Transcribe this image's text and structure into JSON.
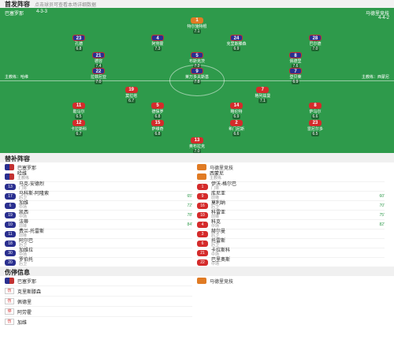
{
  "header": {
    "title": "首发阵容",
    "note": "点击球员可查看本场详细数据"
  },
  "pitch": {
    "home_team": "巴塞罗那",
    "away_team": "马德里竞技",
    "home_formation": "4-3-3",
    "away_formation": "4-4-2",
    "home_coach": "主教练：哈维",
    "away_coach": "主教练：西蒙尼",
    "home_gk": {
      "num": "1",
      "name": "特尔施特根",
      "rating": "7.1"
    },
    "home_def": [
      {
        "num": "23",
        "name": "孔德",
        "rating": "6.8"
      },
      {
        "num": "4",
        "name": "阿劳霍",
        "rating": "7.3"
      },
      {
        "num": "24",
        "name": "克里斯滕森",
        "rating": "6.9"
      },
      {
        "num": "28",
        "name": "巴尔德",
        "rating": "7.0"
      }
    ],
    "home_mid": [
      {
        "num": "21",
        "name": "德容",
        "rating": "7.4"
      },
      {
        "num": "5",
        "name": "布斯克茨",
        "rating": "7.2"
      },
      {
        "num": "8",
        "name": "佩德里",
        "rating": "7.6"
      }
    ],
    "home_fwd": [
      {
        "num": "22",
        "name": "拉菲尼亚",
        "rating": "7.0"
      },
      {
        "num": "9",
        "name": "莱万多夫斯基",
        "rating": "7.8"
      },
      {
        "num": "7",
        "name": "登贝莱",
        "rating": "6.9"
      }
    ],
    "away_fwd": [
      {
        "num": "19",
        "name": "莫拉塔",
        "rating": "6.7"
      },
      {
        "num": "7",
        "name": "格列兹曼",
        "rating": "7.1"
      }
    ],
    "away_mid": [
      {
        "num": "11",
        "name": "勒马尔",
        "rating": "6.5"
      },
      {
        "num": "5",
        "name": "德保罗",
        "rating": "6.8"
      },
      {
        "num": "14",
        "name": "略伦特",
        "rating": "6.9"
      },
      {
        "num": "8",
        "name": "萨乌尔",
        "rating": "6.6"
      }
    ],
    "away_def": [
      {
        "num": "12",
        "name": "卡拉斯科",
        "rating": "6.7"
      },
      {
        "num": "15",
        "name": "萨维奇",
        "rating": "6.8"
      },
      {
        "num": "2",
        "name": "希门尼斯",
        "rating": "6.6"
      },
      {
        "num": "23",
        "name": "雷尼尔多",
        "rating": "6.5"
      }
    ],
    "away_gk": {
      "num": "13",
      "name": "奥布拉克",
      "rating": "7.0"
    }
  },
  "subs": {
    "title": "替补阵容",
    "home_team": "巴塞罗那",
    "away_team": "马德里竞技",
    "home_coach_name": "哈维",
    "home_coach_role": "主教练",
    "away_coach_name": "西蒙尼",
    "away_coach_role": "主教练",
    "home": [
      {
        "num": "13",
        "name": "马克-安德烈",
        "pos": "门将",
        "note": ""
      },
      {
        "num": "17",
        "name": "马科斯-阿隆索",
        "pos": "后卫",
        "note": "65'"
      },
      {
        "num": "6",
        "name": "加维",
        "pos": "中场",
        "note": "72'"
      },
      {
        "num": "19",
        "name": "凯西",
        "pos": "中场",
        "note": "78'"
      },
      {
        "num": "10",
        "name": "法蒂",
        "pos": "前锋",
        "note": "84'"
      },
      {
        "num": "11",
        "name": "费兰-托雷斯",
        "pos": "前锋",
        "note": ""
      },
      {
        "num": "18",
        "name": "阿尔巴",
        "pos": "后卫",
        "note": ""
      },
      {
        "num": "30",
        "name": "加维拉",
        "pos": "中场",
        "note": ""
      },
      {
        "num": "20",
        "name": "罗伯托",
        "pos": "后卫",
        "note": ""
      }
    ],
    "away": [
      {
        "num": "1",
        "name": "伊沃-格尔巴",
        "pos": "门将",
        "note": ""
      },
      {
        "num": "9",
        "name": "库尼亚",
        "pos": "前锋",
        "note": "60'"
      },
      {
        "num": "16",
        "name": "莫利纳",
        "pos": "后卫",
        "note": "70'"
      },
      {
        "num": "10",
        "name": "科雷亚",
        "pos": "前锋",
        "note": "75'"
      },
      {
        "num": "4",
        "name": "科克",
        "pos": "中场",
        "note": "82'"
      },
      {
        "num": "3",
        "name": "赫尔曼",
        "pos": "后卫",
        "note": ""
      },
      {
        "num": "6",
        "name": "托雷斯",
        "pos": "后卫",
        "note": ""
      },
      {
        "num": "21",
        "name": "卡拉斯科",
        "pos": "中场",
        "note": ""
      },
      {
        "num": "22",
        "name": "巴里奥斯",
        "pos": "中场",
        "note": ""
      }
    ]
  },
  "injury": {
    "title": "伤停信息",
    "home_team": "巴塞罗那",
    "away_team": "马德里竞技",
    "home": [
      {
        "name": "克里斯滕森",
        "status": "伤"
      },
      {
        "name": "佩德里",
        "status": "伤"
      },
      {
        "name": "阿劳霍",
        "status": "停"
      },
      {
        "name": "加维",
        "status": "伤"
      }
    ],
    "away": []
  }
}
